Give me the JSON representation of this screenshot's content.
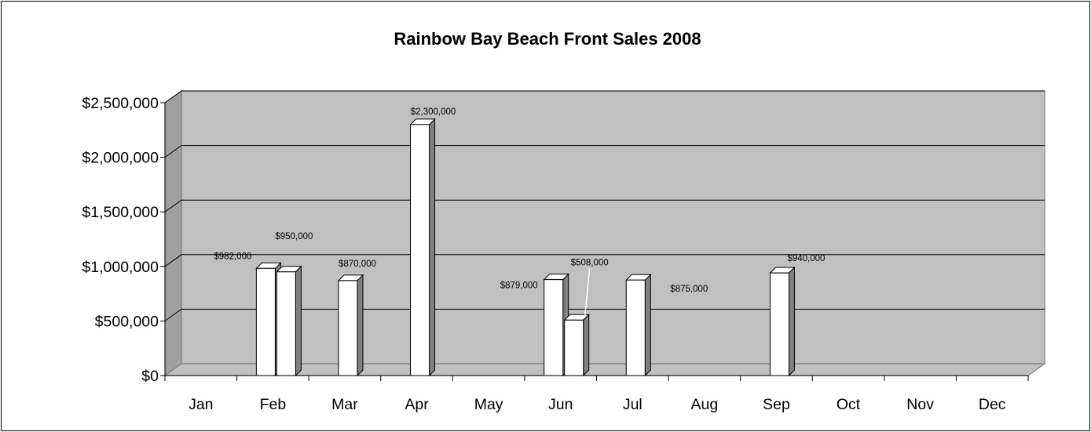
{
  "chart_data": {
    "type": "bar",
    "title": "Rainbow Bay Beach Front Sales 2008",
    "xlabel": "",
    "ylabel": "",
    "ylim": [
      0,
      2500000
    ],
    "grid": true,
    "legend": "none",
    "yticks": [
      "$0",
      "$500,000",
      "$1,000,000",
      "$1,500,000",
      "$2,000,000",
      "$2,500,000"
    ],
    "categories": [
      "Jan",
      "Feb",
      "Mar",
      "Apr",
      "May",
      "Jun",
      "Jul",
      "Aug",
      "Sep",
      "Oct",
      "Nov",
      "Dec"
    ],
    "sales": [
      {
        "month": "Feb",
        "value": 982000,
        "label": "$982,000"
      },
      {
        "month": "Feb",
        "value": 950000,
        "label": "$950,000"
      },
      {
        "month": "Mar",
        "value": 870000,
        "label": "$870,000"
      },
      {
        "month": "Apr",
        "value": 2300000,
        "label": "$2,300,000"
      },
      {
        "month": "Jun",
        "value": 879000,
        "label": "$879,000"
      },
      {
        "month": "Jun",
        "value": 508000,
        "label": "$508,000"
      },
      {
        "month": "Jul",
        "value": 875000,
        "label": "$875,000"
      },
      {
        "month": "Sep",
        "value": 940000,
        "label": "$940,000"
      }
    ],
    "colors": {
      "plot_area": "#c0c0c0",
      "plot_side": "#a0a0a0",
      "bar_front": "#ffffff",
      "bar_top": "#ffffff",
      "bar_side": "#808080",
      "gridline": "#000000",
      "axis": "#808080"
    }
  }
}
